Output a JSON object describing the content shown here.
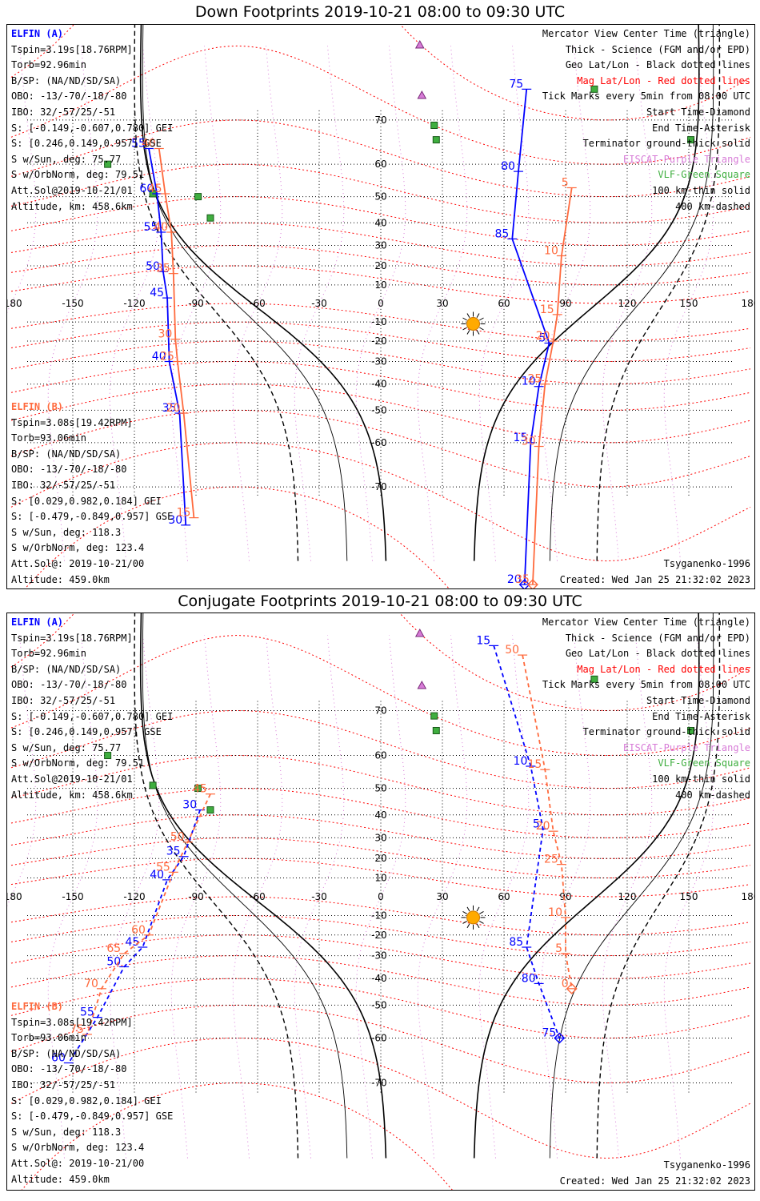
{
  "panels": [
    {
      "title": "Down Footprints 2019-10-21 08:00 to 09:30 UTC",
      "sat_a": {
        "name": "ELFIN (A)",
        "lines": [
          "Tspin=3.19s[18.76RPM]",
          "Torb=92.96min",
          "B/SP: (NA/ND/SD/SA)",
          "OBO: -13/-70/-18/-80",
          "IBO: 32/-57/25/-51",
          "S: [-0.149,-0.607,0.780] GEI",
          "S: [0.246,0.149,0.957] GSE",
          "S w/Sun, deg: 75.77",
          "S w/OrbNorm, deg: 79.51",
          "Att.Sol@2019-10-21/01",
          "Altitude, km: 458.6km"
        ]
      },
      "sat_b": {
        "name": "ELFIN (B)",
        "lines": [
          "Tspin=3.08s[19.42RPM]",
          "Torb=93.06min",
          "B/SP: (NA/ND/SD/SA)",
          "OBO: -13/-70/-18/-80",
          "IBO: 32/-57/25/-51",
          "S: [0.029,0.982,0.184] GEI",
          "S: [-0.479,-0.849,0.957] GSE",
          "S w/Sun, deg: 118.3",
          "S w/OrbNorm, deg: 123.4",
          "Att.Sol@: 2019-10-21/00",
          "Altitude: 459.0km"
        ]
      },
      "bottom_right": [
        "Tsyganenko-1996",
        "Created: Wed Jan 25 21:32:02 2023"
      ]
    },
    {
      "title": "Conjugate Footprints 2019-10-21 08:00 to 09:30 UTC",
      "sat_a": {
        "name": "ELFIN (A)",
        "lines": [
          "Tspin=3.19s[18.76RPM]",
          "Torb=92.96min",
          "B/SP: (NA/ND/SD/SA)",
          "OBO: -13/-70/-18/-80",
          "IBO: 32/-57/25/-51",
          "S: [-0.149,-0.607,0.780] GEI",
          "S: [0.246,0.149,0.957] GSE",
          "S w/Sun, deg: 75.77",
          "S w/OrbNorm, deg: 79.51",
          "Att.Sol@2019-10-21/01",
          "Altitude, km: 458.6km"
        ]
      },
      "sat_b": {
        "name": "ELFIN (B)",
        "lines": [
          "Tspin=3.08s[19.42RPM]",
          "Torb=93.06min",
          "B/SP: (NA/ND/SD/SA)",
          "OBO: -13/-70/-18/-80",
          "IBO: 32/-57/25/-51",
          "S: [0.029,0.982,0.184] GEI",
          "S: [-0.479,-0.849,0.957] GSE",
          "S w/Sun, deg: 118.3",
          "S w/OrbNorm, deg: 123.4",
          "Att.Sol@: 2019-10-21/00",
          "Altitude: 459.0km"
        ]
      },
      "bottom_right": [
        "Tsyganenko-1996",
        "Created: Wed Jan 25 21:32:02 2023"
      ]
    }
  ],
  "legend": [
    {
      "text": "Mercator View Center Time (triangle)",
      "color": "#000000"
    },
    {
      "text": "Thick - Science (FGM and/or EPD)",
      "color": "#000000"
    },
    {
      "text": "Geo Lat/Lon - Black dotted lines",
      "color": "#000000"
    },
    {
      "text": "Mag Lat/Lon - Red dotted lines",
      "color": "#ff0000"
    },
    {
      "text": "Tick Marks every 5min from 08:00 UTC",
      "color": "#000000"
    },
    {
      "text": "Start Time-Diamond",
      "color": "#000000"
    },
    {
      "text": "End Time-Asterisk",
      "color": "#000000"
    },
    {
      "text": "Terminator ground-thick solid",
      "color": "#000000"
    },
    {
      "text": "EISCAT-Purple Triangle",
      "color": "#d77bd7"
    },
    {
      "text": "VLF-Green Square",
      "color": "#3fae3f"
    },
    {
      "text": "100 km-thin solid",
      "color": "#000000"
    },
    {
      "text": "400 km-dashed",
      "color": "#000000"
    }
  ],
  "map": {
    "lon_ticks": [
      "-180",
      "-150",
      "-120",
      "-90",
      "-60",
      "-30",
      "0",
      "30",
      "60",
      "90",
      "120",
      "150",
      "180"
    ],
    "lat_ticks": [
      "70",
      "60",
      "50",
      "40",
      "30",
      "20",
      "10",
      "-10",
      "-20",
      "-30",
      "-40",
      "-50",
      "-60",
      "-70"
    ],
    "colors": {
      "sat_a": "#0000ff",
      "sat_b": "#ff6a3d",
      "mag_grid": "#ff0000",
      "geo_grid": "#000000",
      "eiscat": "#d77bd7",
      "vlf": "#3fae3f",
      "sun": "#ffaa00"
    }
  },
  "chart_data": [
    {
      "type": "scatter",
      "title": "Down Footprints 2019-10-21 08:00 to 09:30 UTC",
      "xlim": [
        -180,
        180
      ],
      "ylim": [
        -80,
        80
      ],
      "series": [
        {
          "name": "ELFIN (A)",
          "points": [
            {
              "label": "55",
              "lon": -113,
              "lat": 64
            },
            {
              "label": "60",
              "lon": -109,
              "lat": 51
            },
            {
              "label": "55",
              "lon": -107,
              "lat": 36
            },
            {
              "label": "50",
              "lon": -106,
              "lat": 17
            },
            {
              "label": "45",
              "lon": -104,
              "lat": 3
            },
            {
              "label": "40",
              "lon": -103,
              "lat": -30
            },
            {
              "label": "35",
              "lon": -98,
              "lat": -51
            },
            {
              "label": "30",
              "lon": -95,
              "lat": -76
            },
            {
              "label": "75",
              "lon": 71,
              "lat": 75
            },
            {
              "label": "80",
              "lon": 67,
              "lat": 58
            },
            {
              "label": "85",
              "lon": 64,
              "lat": 33
            },
            {
              "label": "5",
              "lon": 82,
              "lat": -21
            },
            {
              "label": "10",
              "lon": 77,
              "lat": -41
            },
            {
              "label": "15",
              "lon": 73,
              "lat": -60
            },
            {
              "label": "20",
              "lon": 70,
              "lat": -82
            }
          ]
        },
        {
          "name": "ELFIN (B)",
          "points": [
            {
              "label": "40",
              "lon": -108,
              "lat": 64
            },
            {
              "label": "45",
              "lon": -105,
              "lat": 51
            },
            {
              "label": "40",
              "lon": -102,
              "lat": 36
            },
            {
              "label": "35",
              "lon": -101,
              "lat": 16
            },
            {
              "label": "30",
              "lon": -100,
              "lat": -19
            },
            {
              "label": "25",
              "lon": -99,
              "lat": -30
            },
            {
              "label": "20",
              "lon": -96,
              "lat": -51
            },
            {
              "label": "15",
              "lon": -91,
              "lat": -75
            },
            {
              "label": "5",
              "lon": 93,
              "lat": 53
            },
            {
              "label": "10",
              "lon": 88,
              "lat": 25
            },
            {
              "label": "15",
              "lon": 86,
              "lat": -6
            },
            {
              "label": "20",
              "lon": 84,
              "lat": -20
            },
            {
              "label": "25",
              "lon": 80,
              "lat": -40
            },
            {
              "label": "30",
              "lon": 77,
              "lat": -61
            },
            {
              "label": "35",
              "lon": 74,
              "lat": -82
            }
          ]
        }
      ]
    },
    {
      "type": "scatter",
      "title": "Conjugate Footprints 2019-10-21 08:00 to 09:30 UTC",
      "xlim": [
        -180,
        180
      ],
      "ylim": [
        -80,
        80
      ],
      "series": [
        {
          "name": "ELFIN (A)",
          "points": [
            {
              "label": "30",
              "lon": -88,
              "lat": 42
            },
            {
              "label": "35",
              "lon": -96,
              "lat": 21
            },
            {
              "label": "40",
              "lon": -104,
              "lat": 9
            },
            {
              "label": "45",
              "lon": -116,
              "lat": -26
            },
            {
              "label": "50",
              "lon": -125,
              "lat": -35
            },
            {
              "label": "55",
              "lon": -138,
              "lat": -54
            },
            {
              "label": "60",
              "lon": -152,
              "lat": -66
            },
            {
              "label": "15",
              "lon": 55,
              "lat": 79
            },
            {
              "label": "10",
              "lon": 73,
              "lat": 57
            },
            {
              "label": "5",
              "lon": 79,
              "lat": 34
            },
            {
              "label": "85",
              "lon": 71,
              "lat": -26
            },
            {
              "label": "80",
              "lon": 77,
              "lat": -42
            },
            {
              "label": "75",
              "lon": 87,
              "lat": -60
            }
          ]
        },
        {
          "name": "ELFIN (B)",
          "points": [
            {
              "label": "45",
              "lon": -83,
              "lat": 48
            },
            {
              "label": "50",
              "lon": -94,
              "lat": 28
            },
            {
              "label": "55",
              "lon": -101,
              "lat": 13
            },
            {
              "label": "60",
              "lon": -113,
              "lat": -20
            },
            {
              "label": "65",
              "lon": -125,
              "lat": -29
            },
            {
              "label": "70",
              "lon": -136,
              "lat": -44
            },
            {
              "label": "75",
              "lon": -143,
              "lat": -59
            },
            {
              "label": "50",
              "lon": 69,
              "lat": 78
            },
            {
              "label": "15",
              "lon": 80,
              "lat": 56
            },
            {
              "label": "20",
              "lon": 84,
              "lat": 33
            },
            {
              "label": "25",
              "lon": 88,
              "lat": 17
            },
            {
              "label": "10",
              "lon": 90,
              "lat": -11
            },
            {
              "label": "5",
              "lon": 90,
              "lat": -29
            },
            {
              "label": "0",
              "lon": 93,
              "lat": -44
            }
          ]
        }
      ]
    }
  ]
}
